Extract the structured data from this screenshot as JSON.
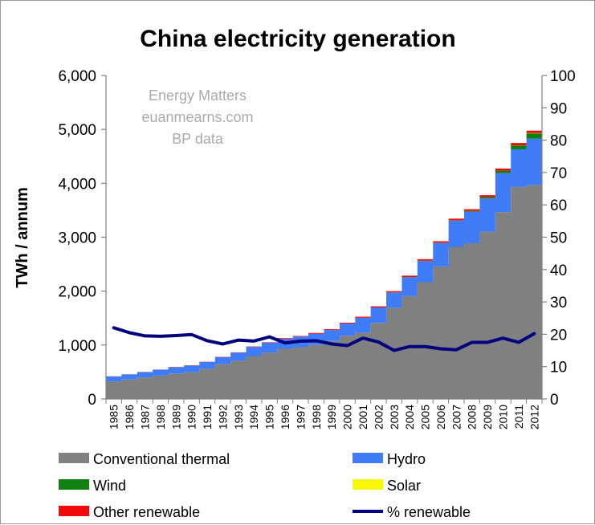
{
  "chart_data": {
    "type": "area",
    "title": "China electricity generation",
    "ylabel": "TWh / annum",
    "y2label": "",
    "ylim": [
      0,
      6000
    ],
    "y2lim": [
      0,
      100
    ],
    "yticks": [
      "0",
      "1,000",
      "2,000",
      "3,000",
      "4,000",
      "5,000",
      "6,000"
    ],
    "y2ticks": [
      "0",
      "10",
      "20",
      "30",
      "40",
      "50",
      "60",
      "70",
      "80",
      "90",
      "100"
    ],
    "grid": false,
    "legend": "bottom",
    "notes": [
      "Energy Matters",
      "euanmearns.com",
      "BP data"
    ],
    "categories": [
      "1985",
      "1986",
      "1987",
      "1988",
      "1989",
      "1990",
      "1991",
      "1992",
      "1993",
      "1994",
      "1995",
      "1996",
      "1997",
      "1998",
      "1999",
      "2000",
      "2001",
      "2002",
      "2003",
      "2004",
      "2005",
      "2006",
      "2007",
      "2008",
      "2009",
      "2010",
      "2011",
      "2012"
    ],
    "series": [
      {
        "name": "Conventional thermal",
        "color": "#808080",
        "values": [
          325,
          361,
          398,
          434,
          472,
          496,
          561,
          644,
          709,
          797,
          858,
          931,
          961,
          1006,
          1075,
          1175,
          1230,
          1409,
          1692,
          1907,
          2166,
          2459,
          2822,
          2888,
          3102,
          3466,
          3932,
          3970
        ]
      },
      {
        "name": "Hydro",
        "color": "#3f7cf7",
        "values": [
          93,
          95,
          100,
          109,
          118,
          126,
          125,
          130,
          151,
          168,
          187,
          188,
          196,
          204,
          204,
          222,
          277,
          288,
          283,
          353,
          397,
          435,
          486,
          587,
          616,
          722,
          699,
          860
        ]
      },
      {
        "name": "Wind",
        "color": "#108010",
        "values": [
          0,
          0,
          0,
          0,
          0,
          0,
          0,
          0,
          0,
          0,
          0,
          0,
          0,
          0,
          0,
          1,
          1,
          1,
          2,
          3,
          4,
          4,
          6,
          13,
          28,
          45,
          71,
          96
        ]
      },
      {
        "name": "Solar",
        "color": "#f7f70a",
        "values": [
          0,
          0,
          0,
          0,
          0,
          0,
          0,
          0,
          0,
          0,
          0,
          0,
          0,
          0,
          0,
          0,
          0,
          0,
          0,
          0,
          0,
          0,
          0,
          0,
          0,
          1,
          3,
          6
        ]
      },
      {
        "name": "Other renewable",
        "color": "#f20a0a",
        "values": [
          2,
          2,
          2,
          3,
          3,
          4,
          4,
          5,
          6,
          8,
          9,
          10,
          12,
          14,
          15,
          17,
          18,
          20,
          22,
          24,
          26,
          28,
          30,
          32,
          34,
          38,
          42,
          45
        ]
      },
      {
        "name": "% renewable",
        "color": "#00007f",
        "axis": "right",
        "values": [
          22,
          20.5,
          19.5,
          19.4,
          19.6,
          19.9,
          18,
          17,
          18.2,
          17.9,
          19.2,
          17.3,
          17.9,
          18,
          17,
          16.5,
          18.8,
          17.6,
          15,
          16.2,
          16.2,
          15.5,
          15.2,
          17.5,
          17.5,
          18.8,
          17.5,
          20.2
        ]
      }
    ]
  }
}
